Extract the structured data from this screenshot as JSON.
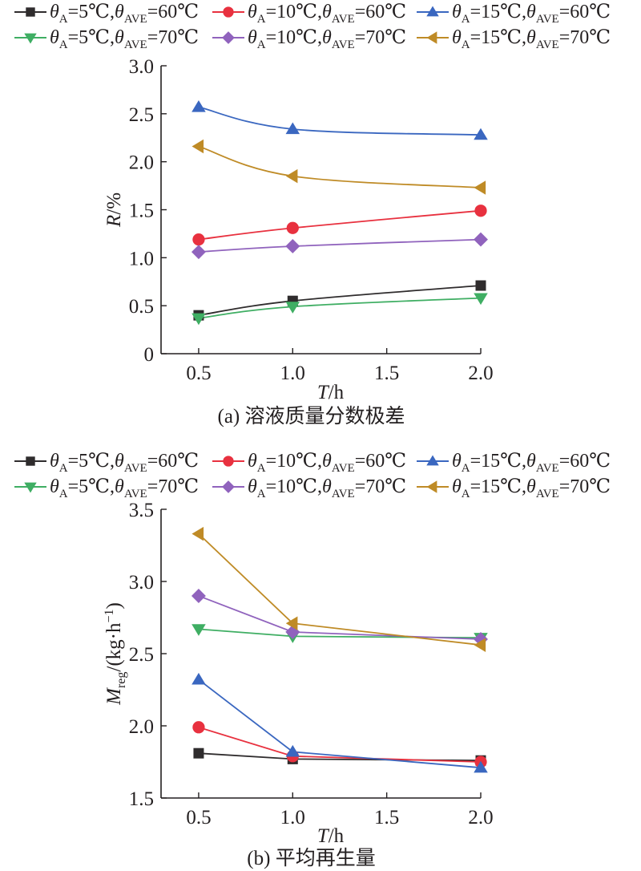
{
  "chart_data": [
    {
      "id": "a",
      "type": "line",
      "title": "",
      "caption": "(a) 溶液质量分数极差",
      "xlabel": {
        "italic": "T",
        "rest": "/h"
      },
      "ylabel": {
        "italic": "R",
        "rest": "/%"
      },
      "x": [
        0.5,
        1.0,
        2.0
      ],
      "xlim": [
        0.3,
        2.0
      ],
      "xticks": [
        0.5,
        1.0,
        1.5,
        2.0
      ],
      "xtick_labels": [
        "0.5",
        "1.0",
        "1.5",
        "2.0"
      ],
      "ylim": [
        0,
        3.0
      ],
      "yticks": [
        0,
        0.5,
        1.0,
        1.5,
        2.0,
        2.5,
        3.0
      ],
      "ytick_labels": [
        "0",
        "0.5",
        "1.0",
        "1.5",
        "2.0",
        "2.5",
        "3.0"
      ],
      "grid": false,
      "smooth": true,
      "legend_position": "top",
      "series": [
        {
          "name": "θA=5℃,θAVE=60℃",
          "thetaA": "5",
          "thetaAVE": "60",
          "color": "#2f2c2d",
          "marker": "square",
          "values": [
            0.4,
            0.55,
            0.71
          ]
        },
        {
          "name": "θA=10℃,θAVE=60℃",
          "thetaA": "10",
          "thetaAVE": "60",
          "color": "#e8313f",
          "marker": "circle",
          "values": [
            1.19,
            1.31,
            1.49
          ]
        },
        {
          "name": "θA=15℃,θAVE=60℃",
          "thetaA": "15",
          "thetaAVE": "60",
          "color": "#3a67c0",
          "marker": "triangle-up",
          "values": [
            2.57,
            2.34,
            2.28
          ]
        },
        {
          "name": "θA=5℃,θAVE=70℃",
          "thetaA": "5",
          "thetaAVE": "70",
          "color": "#3fae63",
          "marker": "triangle-down",
          "values": [
            0.37,
            0.49,
            0.58
          ]
        },
        {
          "name": "θA=10℃,θAVE=70℃",
          "thetaA": "10",
          "thetaAVE": "70",
          "color": "#9063bd",
          "marker": "diamond",
          "values": [
            1.06,
            1.12,
            1.19
          ]
        },
        {
          "name": "θA=15℃,θAVE=70℃",
          "thetaA": "15",
          "thetaAVE": "70",
          "color": "#bf8b26",
          "marker": "triangle-left",
          "values": [
            2.16,
            1.85,
            1.73
          ]
        }
      ]
    },
    {
      "id": "b",
      "type": "line",
      "title": "",
      "caption": "(b) 平均再生量",
      "xlabel": {
        "italic": "T",
        "rest": "/h"
      },
      "ylabel": {
        "italic": "M",
        "sub": "reg",
        "rest": "/(kg·h",
        "sup": "−1",
        "close": ")"
      },
      "x": [
        0.5,
        1.0,
        2.0
      ],
      "xlim": [
        0.3,
        2.0
      ],
      "xticks": [
        0.5,
        1.0,
        1.5,
        2.0
      ],
      "xtick_labels": [
        "0.5",
        "1.0",
        "1.5",
        "2.0"
      ],
      "ylim": [
        1.5,
        3.5
      ],
      "yticks": [
        1.5,
        2.0,
        2.5,
        3.0,
        3.5
      ],
      "ytick_labels": [
        "1.5",
        "2.0",
        "2.5",
        "3.0",
        "3.5"
      ],
      "grid": false,
      "smooth": false,
      "legend_position": "top",
      "series": [
        {
          "name": "θA=5℃,θAVE=60℃",
          "thetaA": "5",
          "thetaAVE": "60",
          "color": "#2f2c2d",
          "marker": "square",
          "values": [
            1.81,
            1.77,
            1.76
          ]
        },
        {
          "name": "θA=10℃,θAVE=60℃",
          "thetaA": "10",
          "thetaAVE": "60",
          "color": "#e8313f",
          "marker": "circle",
          "values": [
            1.99,
            1.79,
            1.75
          ]
        },
        {
          "name": "θA=15℃,θAVE=60℃",
          "thetaA": "15",
          "thetaAVE": "60",
          "color": "#3a67c0",
          "marker": "triangle-up",
          "values": [
            2.32,
            1.82,
            1.71
          ]
        },
        {
          "name": "θA=5℃,θAVE=70℃",
          "thetaA": "5",
          "thetaAVE": "70",
          "color": "#3fae63",
          "marker": "triangle-down",
          "values": [
            2.67,
            2.62,
            2.61
          ]
        },
        {
          "name": "θA=10℃,θAVE=70℃",
          "thetaA": "10",
          "thetaAVE": "70",
          "color": "#9063bd",
          "marker": "diamond",
          "values": [
            2.9,
            2.65,
            2.6
          ]
        },
        {
          "name": "θA=15℃,θAVE=70℃",
          "thetaA": "15",
          "thetaAVE": "70",
          "color": "#bf8b26",
          "marker": "triangle-left",
          "values": [
            3.33,
            2.71,
            2.56
          ]
        }
      ]
    }
  ],
  "legend_symbols": {
    "theta": "θ",
    "sub_a": "A",
    "sub_ave": "AVE",
    "degree_c": "℃",
    "equals": "=",
    "comma": ","
  }
}
